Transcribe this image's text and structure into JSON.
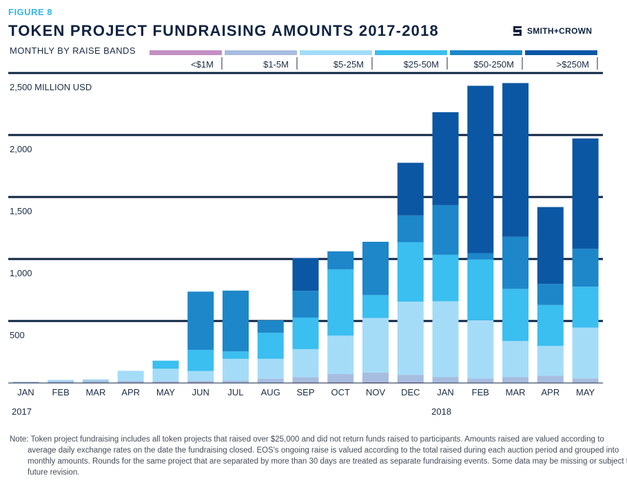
{
  "figure_label": "FIGURE 8",
  "title": "TOKEN PROJECT FUNDRAISING AMOUNTS 2017-2018",
  "subtitle": "MONTHLY BY RAISE BANDS",
  "brand": {
    "name": "SMITH+CROWN",
    "icon": "smith-crown-logo-icon"
  },
  "note": "Note: Token project fundraising includes all token projects that raised over $25,000 and did not return funds raised to participants. Amounts raised are valued according to average daily exchange rates on the date the fundraising closed. EOS's ongoing raise is valued according to the total raised during each auction period and grouped into monthly amounts. Rounds for the same project that are separated by more than 30 days are treated as separate fundraising events. Some data may be missing or subject to future revision.",
  "chart_data": {
    "type": "bar",
    "stacked": true,
    "ylabel": "MILLION USD",
    "ylim": [
      0,
      2500
    ],
    "yticks": [
      500,
      1000,
      1500,
      2000,
      2500
    ],
    "ytick_labels": [
      "500",
      "1,000",
      "1,500",
      "2,000",
      "2,500 MILLION USD"
    ],
    "grid": true,
    "legend_position": "top",
    "categories": [
      "JAN",
      "FEB",
      "MAR",
      "APR",
      "MAY",
      "JUN",
      "JUL",
      "AUG",
      "SEP",
      "OCT",
      "NOV",
      "DEC",
      "JAN",
      "FEB",
      "MAR",
      "APR",
      "MAY"
    ],
    "year_labels": [
      {
        "index": 0,
        "label": "2017"
      },
      {
        "index": 12,
        "label": "2018"
      }
    ],
    "series": [
      {
        "name": "<$1M",
        "color": "#c38fc4",
        "values": [
          3,
          3,
          3,
          3,
          5,
          5,
          3,
          3,
          5,
          5,
          6,
          6,
          4,
          4,
          4,
          4,
          4
        ]
      },
      {
        "name": "$1-5M",
        "color": "#a7bde0",
        "values": [
          7,
          12,
          17,
          15,
          10,
          12,
          17,
          32,
          43,
          67,
          78,
          60,
          45,
          33,
          45,
          55,
          33
        ]
      },
      {
        "name": "$5-25M",
        "color": "#a4dcf8",
        "values": [
          0,
          10,
          10,
          80,
          100,
          80,
          175,
          160,
          225,
          310,
          440,
          590,
          610,
          470,
          290,
          240,
          410
        ]
      },
      {
        "name": "$25-50M",
        "color": "#3bbef0",
        "values": [
          0,
          0,
          0,
          0,
          65,
          170,
          60,
          210,
          255,
          535,
          185,
          480,
          375,
          490,
          420,
          330,
          330
        ]
      },
      {
        "name": "$50-250M",
        "color": "#1d87c9",
        "values": [
          0,
          0,
          0,
          0,
          0,
          470,
          490,
          100,
          215,
          145,
          430,
          215,
          400,
          50,
          420,
          170,
          305
        ]
      },
      {
        "name": ">$250M",
        "color": "#0b57a4",
        "values": [
          0,
          0,
          0,
          0,
          0,
          0,
          0,
          0,
          265,
          0,
          0,
          425,
          750,
          1350,
          1240,
          620,
          890
        ]
      }
    ]
  }
}
